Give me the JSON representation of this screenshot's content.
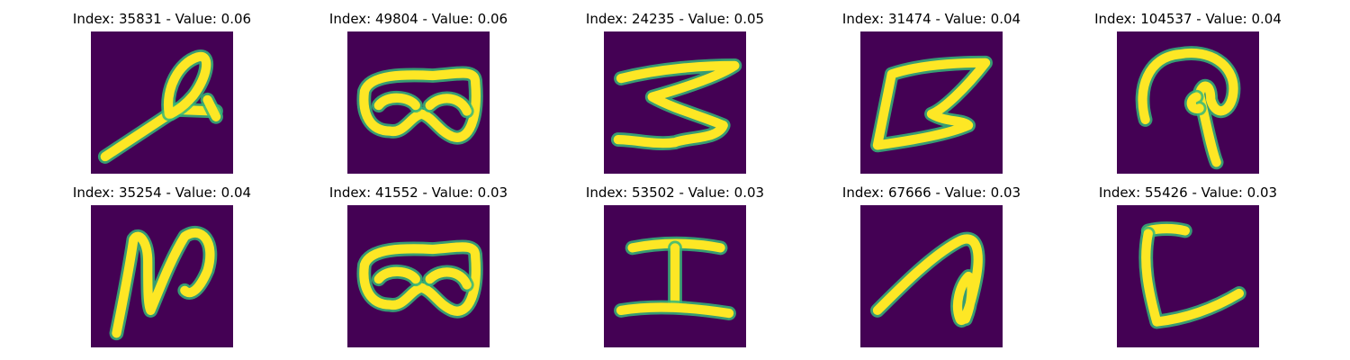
{
  "figure": {
    "background_color": "#440154",
    "stroke_color": "#fde725",
    "edge_color": "#35b779",
    "panels": [
      {
        "title": "Index: 35831 - Value: 0.06",
        "glyph": "stroke-diagonal-loop"
      },
      {
        "title": "Index: 49804 - Value: 0.06",
        "glyph": "goggles"
      },
      {
        "title": "Index: 24235 - Value: 0.05",
        "glyph": "zigzag-s"
      },
      {
        "title": "Index: 31474 - Value: 0.04",
        "glyph": "zigzag-z"
      },
      {
        "title": "Index: 104537 - Value: 0.04",
        "glyph": "hook-loop"
      },
      {
        "title": "Index: 35254 - Value: 0.04",
        "glyph": "script-n"
      },
      {
        "title": "Index: 41552 - Value: 0.03",
        "glyph": "goggles"
      },
      {
        "title": "Index: 53502 - Value: 0.03",
        "glyph": "capital-i"
      },
      {
        "title": "Index: 67666 - Value: 0.03",
        "glyph": "diagonal-loop"
      },
      {
        "title": "Index: 55426 - Value: 0.03",
        "glyph": "corner-l"
      }
    ]
  }
}
